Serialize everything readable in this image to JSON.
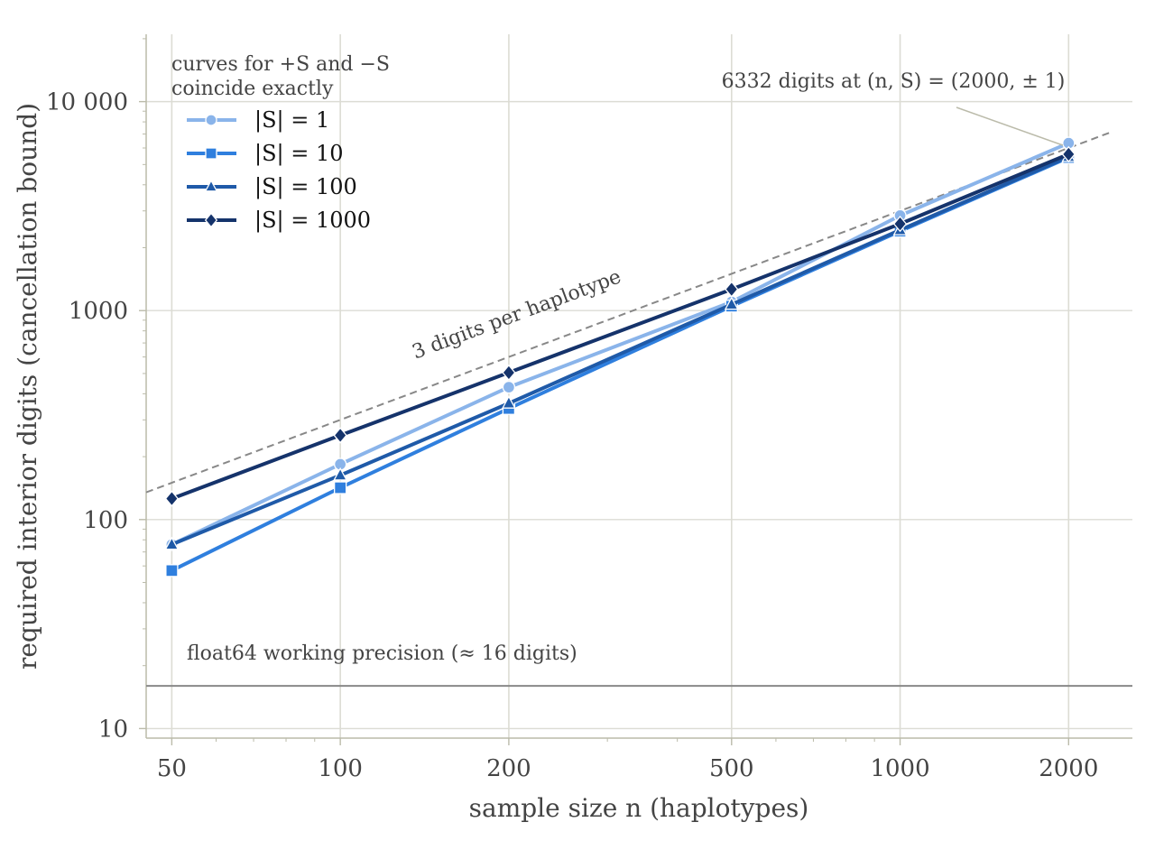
{
  "chart_data": {
    "type": "line",
    "xlabel": "sample size n (haplotypes)",
    "ylabel": "required interior digits (cancellation bound)",
    "xscale": "log",
    "yscale": "log",
    "xlim": [
      45,
      2600
    ],
    "ylim": [
      9,
      21000
    ],
    "grid": true,
    "legend_placement": "top-left",
    "x_ticks": [
      50,
      100,
      200,
      500,
      1000,
      2000
    ],
    "x_tick_labels": [
      "50",
      "100",
      "200",
      "500",
      "1000",
      "2000"
    ],
    "y_ticks": [
      10,
      100,
      1000,
      10000
    ],
    "y_tick_labels": [
      "10",
      "100",
      "1000",
      "10 000"
    ],
    "legend_note": [
      "curves for +S and −S",
      "coincide exactly"
    ],
    "series": [
      {
        "name": "|S| = 1",
        "color": "#8ab4ea",
        "marker": "circle",
        "x": [
          50,
          100,
          200,
          500,
          1000,
          2000
        ],
        "y": [
          76,
          184,
          430,
          1100,
          2850,
          6332
        ]
      },
      {
        "name": "|S| = 10",
        "color": "#2f7fde",
        "marker": "square",
        "x": [
          50,
          100,
          200,
          500,
          1000,
          2000
        ],
        "y": [
          57,
          142,
          340,
          1050,
          2400,
          5400
        ]
      },
      {
        "name": "|S| = 100",
        "color": "#1f5aa8",
        "marker": "triangle",
        "x": [
          50,
          100,
          200,
          500,
          1000,
          2000
        ],
        "y": [
          76,
          163,
          360,
          1070,
          2430,
          5450
        ]
      },
      {
        "name": "|S| = 1000",
        "color": "#15336b",
        "marker": "diamond",
        "x": [
          50,
          100,
          200,
          500,
          1000,
          2000
        ],
        "y": [
          126,
          253,
          505,
          1265,
          2600,
          5600
        ]
      }
    ],
    "reference_lines": [
      {
        "label": "3 digits per haplotype",
        "color": "#888888",
        "style": "dashed",
        "x": [
          45,
          2400
        ],
        "y": [
          135,
          7200
        ]
      },
      {
        "label": "float64 working precision (≈ 16 digits)",
        "color": "#888888",
        "style": "solid",
        "y_value": 16
      }
    ],
    "annotation": {
      "text": "6332 digits at (n, S) = (2000, ± 1)",
      "x": 2000,
      "y": 6332
    }
  }
}
